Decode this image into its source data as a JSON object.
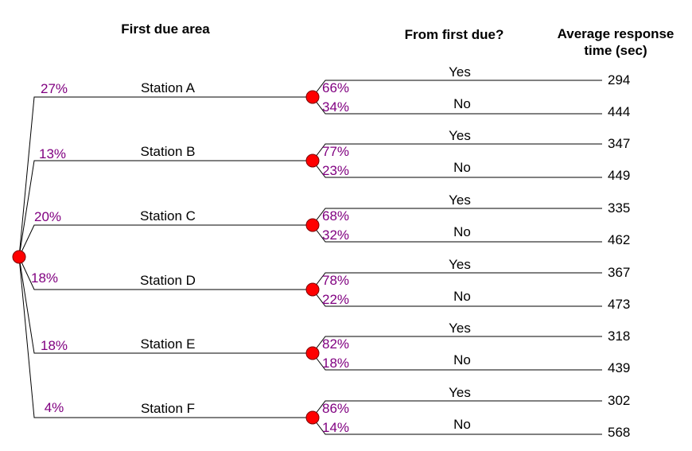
{
  "headers": {
    "first_due_area": "First due area",
    "from_first_due": "From first due?",
    "avg_response_line1": "Average response",
    "avg_response_line2": "time (sec)"
  },
  "colors": {
    "node_fill": "#ff0000",
    "percent_text": "#800080",
    "line": "#000000"
  },
  "stations": [
    {
      "name": "Station A",
      "share": "27%",
      "yes_pct": "66%",
      "no_pct": "34%",
      "yes_label": "Yes",
      "no_label": "No",
      "yes_time": "294",
      "no_time": "444"
    },
    {
      "name": "Station B",
      "share": "13%",
      "yes_pct": "77%",
      "no_pct": "23%",
      "yes_label": "Yes",
      "no_label": "No",
      "yes_time": "347",
      "no_time": "449"
    },
    {
      "name": "Station C",
      "share": "20%",
      "yes_pct": "68%",
      "no_pct": "32%",
      "yes_label": "Yes",
      "no_label": "No",
      "yes_time": "335",
      "no_time": "462"
    },
    {
      "name": "Station D",
      "share": "18%",
      "yes_pct": "78%",
      "no_pct": "22%",
      "yes_label": "Yes",
      "no_label": "No",
      "yes_time": "367",
      "no_time": "473"
    },
    {
      "name": "Station E",
      "share": "18%",
      "yes_pct": "82%",
      "no_pct": "18%",
      "yes_label": "Yes",
      "no_label": "No",
      "yes_time": "318",
      "no_time": "439"
    },
    {
      "name": "Station F",
      "share": "4%",
      "yes_pct": "86%",
      "no_pct": "14%",
      "yes_label": "Yes",
      "no_label": "No",
      "yes_time": "302",
      "no_time": "568"
    }
  ]
}
